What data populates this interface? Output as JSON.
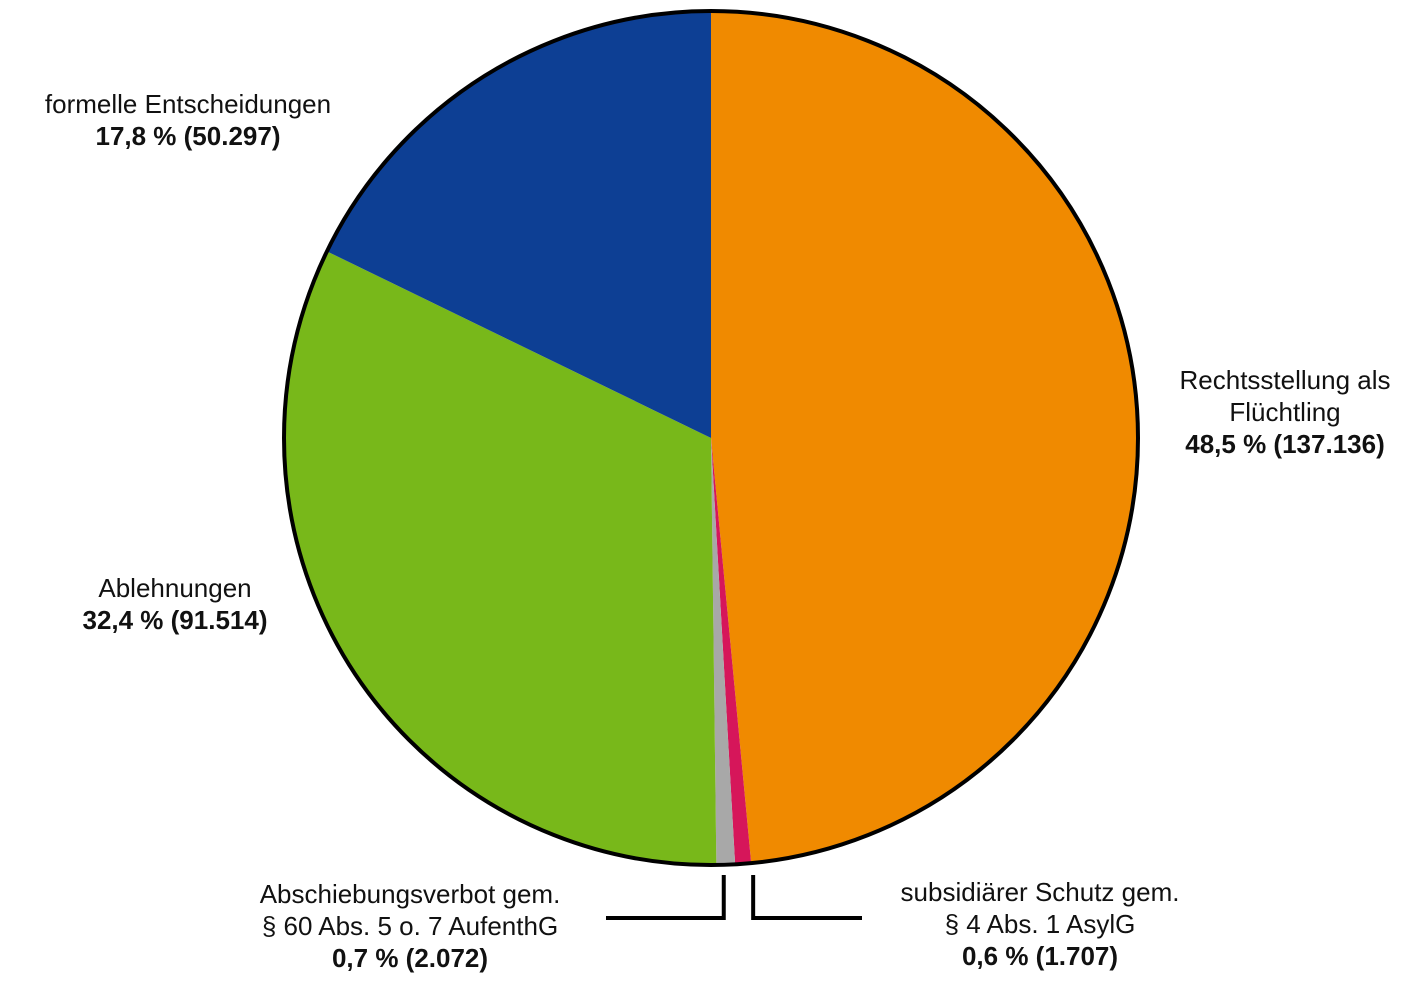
{
  "chart_data": {
    "type": "pie",
    "title": "",
    "unit": "%",
    "slices": [
      {
        "key": "refugee",
        "label": "Rechtsstellung als Flüchtling",
        "label_lines": [
          "Rechtsstellung als",
          "Flüchtling"
        ],
        "percent": 48.5,
        "count": 137136,
        "value_text": "48,5 % (137.136)",
        "color": "#F08A00"
      },
      {
        "key": "subsid",
        "label": "subsidiärer Schutz gem. § 4 Abs. 1 AsylG",
        "label_lines": [
          "subsidiärer Schutz gem.",
          "§ 4 Abs. 1 AsylG"
        ],
        "percent": 0.6,
        "count": 1707,
        "value_text": "0,6 % (1.707)",
        "color": "#D6165A"
      },
      {
        "key": "deport",
        "label": "Abschiebungsverbot gem. § 60 Abs. 5 o. 7 AufenthG",
        "label_lines": [
          "Abschiebungsverbot gem.",
          "§ 60 Abs. 5 o. 7 AufenthG"
        ],
        "percent": 0.7,
        "count": 2072,
        "value_text": "0,7 % (2.072)",
        "color": "#A8A8A8"
      },
      {
        "key": "reject",
        "label": "Ablehnungen",
        "label_lines": [
          "Ablehnungen"
        ],
        "percent": 32.4,
        "count": 91514,
        "value_text": "32,4 % (91.514)",
        "color": "#78B81A"
      },
      {
        "key": "formal",
        "label": "formelle Entscheidungen",
        "label_lines": [
          "formelle Entscheidungen"
        ],
        "percent": 17.8,
        "count": 50297,
        "value_text": "17,8 % (50.297)",
        "color": "#0D3F94"
      }
    ],
    "start": "12 o'clock",
    "direction": "clockwise",
    "legend": "none (labels next to slices)"
  }
}
